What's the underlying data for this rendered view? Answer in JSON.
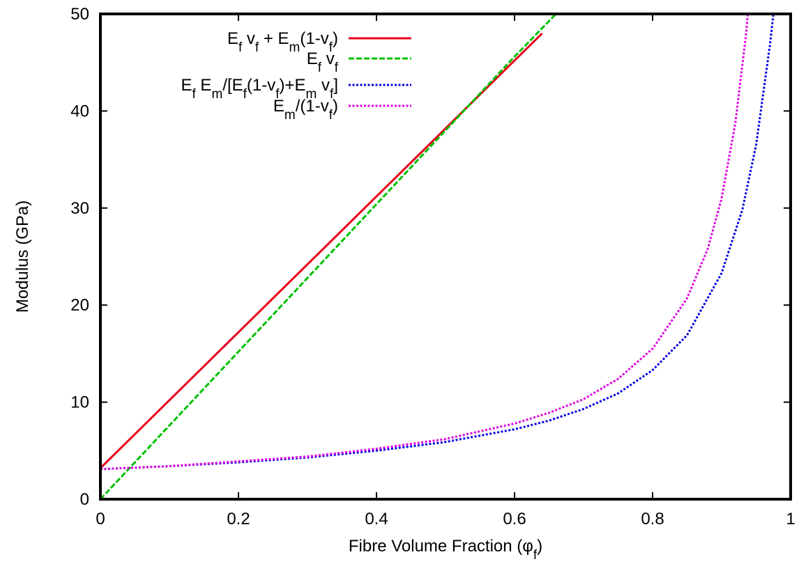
{
  "chart_data": {
    "type": "line",
    "xlabel": {
      "text": "Fibre Volume Fraction (",
      "symbol": "φ",
      "sub": "f",
      "close": ")"
    },
    "ylabel": "Modulus (GPa)",
    "xlim": [
      0,
      1
    ],
    "ylim": [
      0,
      50
    ],
    "xticks": [
      0,
      0.2,
      0.4,
      0.6,
      0.8,
      1
    ],
    "xtick_labels": [
      "0",
      "0.2",
      "0.4",
      "0.6",
      "0.8",
      "1"
    ],
    "yticks": [
      0,
      10,
      20,
      30,
      40,
      50
    ],
    "ytick_labels": [
      "0",
      "10",
      "20",
      "30",
      "40",
      "50"
    ],
    "grid": false,
    "legend_position": "top-left",
    "series": [
      {
        "name": "E_f v_f + E_m(1-v_f)",
        "legend_parts": [
          [
            "E",
            ""
          ],
          [
            "f",
            "sub"
          ],
          [
            " v",
            ""
          ],
          [
            "f",
            "sub"
          ],
          [
            " + E",
            ""
          ],
          [
            "m",
            "sub"
          ],
          [
            "(1-v",
            ""
          ],
          [
            "f",
            "sub"
          ],
          [
            ")",
            ""
          ]
        ],
        "color": "#e8001a",
        "style": "solid",
        "x": [
          0,
          0.1,
          0.2,
          0.3,
          0.4,
          0.5,
          0.6,
          0.64
        ],
        "y": [
          3.2,
          10.2,
          17.2,
          24.2,
          31.2,
          38.2,
          45.2,
          48.0
        ]
      },
      {
        "name": "E_f v_f",
        "legend_parts": [
          [
            "E",
            ""
          ],
          [
            "f",
            "sub"
          ],
          [
            " v",
            ""
          ],
          [
            "f",
            "sub"
          ]
        ],
        "color": "#00c000",
        "style": "dashed",
        "x": [
          0,
          0.1,
          0.2,
          0.3,
          0.4,
          0.5,
          0.6,
          0.66
        ],
        "y": [
          0,
          7.6,
          15.2,
          22.8,
          30.4,
          38.0,
          45.6,
          50.0
        ]
      },
      {
        "name": "E_f E_m/[E_f(1-v_f)+E_m v_f]",
        "legend_parts": [
          [
            "E",
            ""
          ],
          [
            "f",
            "sub"
          ],
          [
            " E",
            ""
          ],
          [
            "m",
            "sub"
          ],
          [
            "/[E",
            ""
          ],
          [
            "f",
            "sub"
          ],
          [
            "(1-v",
            ""
          ],
          [
            "f",
            "sub"
          ],
          [
            ")+E",
            ""
          ],
          [
            "m",
            "sub"
          ],
          [
            " v",
            ""
          ],
          [
            "f",
            "sub"
          ],
          [
            "]",
            ""
          ]
        ],
        "color": "#0000e0",
        "style": "dotted",
        "x": [
          0,
          0.1,
          0.2,
          0.3,
          0.4,
          0.5,
          0.6,
          0.65,
          0.7,
          0.75,
          0.8,
          0.85,
          0.9,
          0.93,
          0.95,
          0.97,
          0.975
        ],
        "y": [
          3.1,
          3.4,
          3.8,
          4.3,
          5.0,
          5.9,
          7.2,
          8.1,
          9.3,
          10.9,
          13.3,
          16.9,
          23.3,
          29.8,
          36.5,
          46.8,
          50.0
        ]
      },
      {
        "name": "E_m/(1-v_f)",
        "legend_parts": [
          [
            "E",
            ""
          ],
          [
            "m",
            "sub"
          ],
          [
            "/(1-v",
            ""
          ],
          [
            "f",
            "sub"
          ],
          [
            ")",
            ""
          ]
        ],
        "color": "#e000e0",
        "style": "dotted",
        "x": [
          0,
          0.1,
          0.2,
          0.3,
          0.4,
          0.5,
          0.6,
          0.65,
          0.7,
          0.75,
          0.8,
          0.85,
          0.88,
          0.9,
          0.92,
          0.935,
          0.938
        ],
        "y": [
          3.1,
          3.4,
          3.9,
          4.4,
          5.2,
          6.2,
          7.8,
          8.9,
          10.3,
          12.4,
          15.5,
          20.7,
          25.8,
          31.0,
          38.8,
          47.7,
          50.0
        ]
      }
    ]
  }
}
